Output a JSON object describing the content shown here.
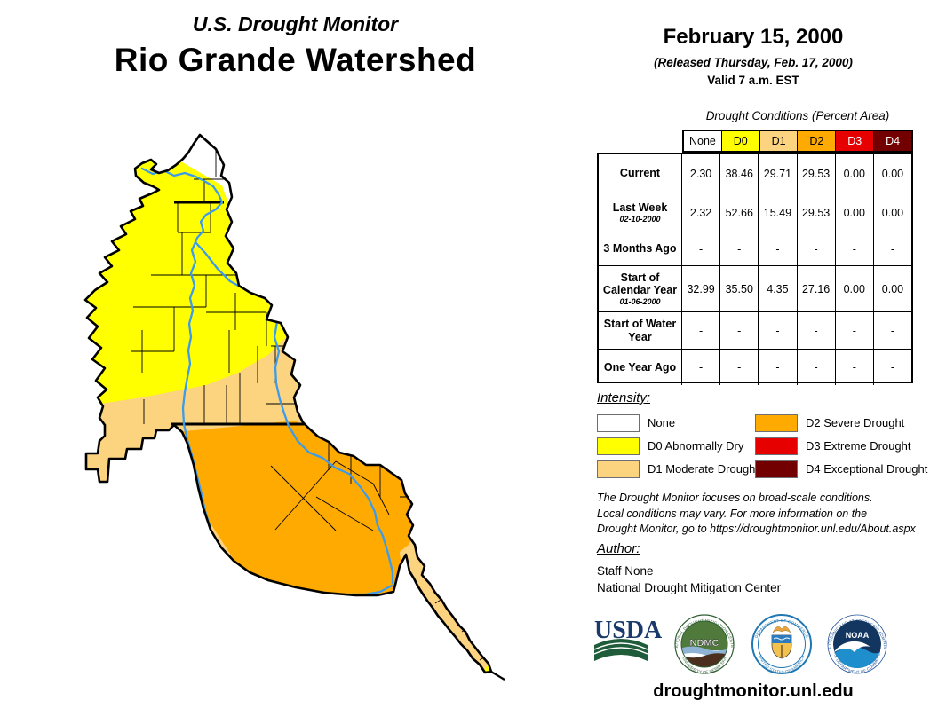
{
  "title": {
    "line1": "U.S. Drought Monitor",
    "line2": "Rio Grande Watershed"
  },
  "date_block": {
    "date": "February 15, 2000",
    "released": "(Released Thursday, Feb. 17, 2000)",
    "valid": "Valid 7 a.m. EST"
  },
  "table": {
    "title": "Drought Conditions (Percent Area)",
    "columns": [
      "None",
      "D0",
      "D1",
      "D2",
      "D3",
      "D4"
    ],
    "column_colors": [
      "#FFFFFF",
      "#FFFF00",
      "#FCD37F",
      "#FFAA00",
      "#E60000",
      "#730000"
    ],
    "rows": [
      {
        "label": "Current",
        "sublabel": "",
        "values": [
          "2.30",
          "38.46",
          "29.71",
          "29.53",
          "0.00",
          "0.00"
        ]
      },
      {
        "label": "Last Week",
        "sublabel": "02-10-2000",
        "values": [
          "2.32",
          "52.66",
          "15.49",
          "29.53",
          "0.00",
          "0.00"
        ]
      },
      {
        "label": "3 Months Ago",
        "sublabel": "",
        "values": [
          "-",
          "-",
          "-",
          "-",
          "-",
          "-"
        ]
      },
      {
        "label": "Start of Calendar Year",
        "sublabel": "01-06-2000",
        "values": [
          "32.99",
          "35.50",
          "4.35",
          "27.16",
          "0.00",
          "0.00"
        ]
      },
      {
        "label": "Start of Water Year",
        "sublabel": "",
        "values": [
          "-",
          "-",
          "-",
          "-",
          "-",
          "-"
        ]
      },
      {
        "label": "One Year Ago",
        "sublabel": "",
        "values": [
          "-",
          "-",
          "-",
          "-",
          "-",
          "-"
        ]
      }
    ]
  },
  "legend": {
    "heading": "Intensity:",
    "items": [
      {
        "label": "None",
        "color": "#FFFFFF"
      },
      {
        "label": "D0 Abnormally Dry",
        "color": "#FFFF00"
      },
      {
        "label": "D1 Moderate Drought",
        "color": "#FCD37F"
      },
      {
        "label": "D2 Severe Drought",
        "color": "#FFAA00"
      },
      {
        "label": "D3 Extreme Drought",
        "color": "#E60000"
      },
      {
        "label": "D4 Exceptional Drought",
        "color": "#730000"
      }
    ]
  },
  "disclaimer": {
    "line1": "The Drought Monitor focuses on broad-scale conditions.",
    "line2": "Local conditions may vary. For more information on the",
    "line3": "Drought Monitor, go to https://droughtmonitor.unl.edu/About.aspx"
  },
  "author": {
    "heading": "Author:",
    "name": "Staff None",
    "org": "National Drought Mitigation Center"
  },
  "footer": {
    "url": "droughtmonitor.unl.edu"
  },
  "logos": {
    "usda": {
      "text": "USDA"
    },
    "ndmc": {
      "text": "NDMC",
      "ring_top": "NATIONAL DROUGHT MITIGATION CENTER",
      "ring_bottom": "UNIVERSITY OF NEBRASKA"
    },
    "doc": {
      "ring_top": "DEPARTMENT OF COMMERCE",
      "ring_bottom": "UNITED STATES OF AMERICA"
    },
    "noaa": {
      "text": "NOAA",
      "ring_top": "NATIONAL OCEANIC AND ATMOSPHERIC ADMINISTRATION",
      "ring_bottom": "U.S. DEPARTMENT OF COMMERCE"
    }
  },
  "map": {
    "zone_colors": {
      "none": "#FFFFFF",
      "d0": "#FFFF00",
      "d1": "#FCD37F",
      "d2": "#FFAA00",
      "d3": "#E60000",
      "d4": "#730000",
      "river": "#3D9BE9",
      "outline": "#000000"
    }
  }
}
